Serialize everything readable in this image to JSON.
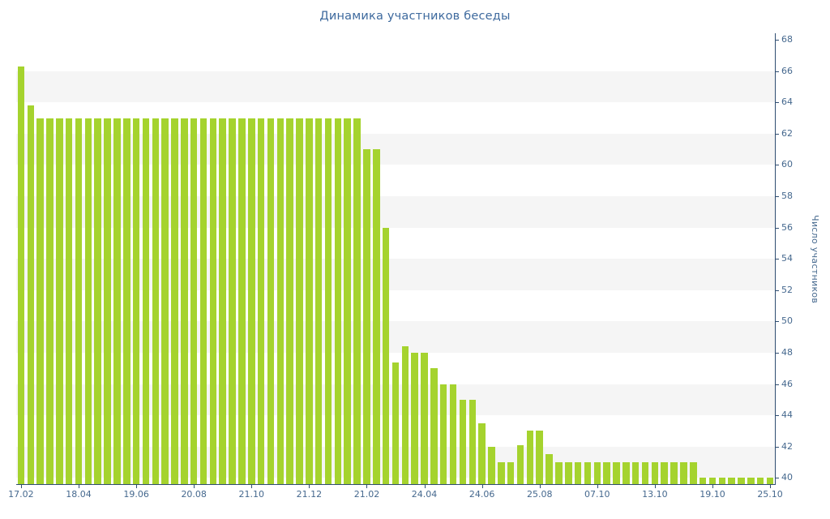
{
  "page": {
    "background": "#ffffff"
  },
  "chart_data": {
    "type": "bar",
    "title": "Динамика участников беседы",
    "xlabel": "",
    "ylabel": "Число участников",
    "ylim": [
      40,
      68
    ],
    "y_axis_side": "right",
    "grid": "striped-bands",
    "legend": "none",
    "y_ticks": [
      40,
      42,
      44,
      46,
      48,
      50,
      52,
      54,
      56,
      58,
      60,
      62,
      64,
      66,
      68
    ],
    "x_tick_labels": [
      "17.02",
      "18.04",
      "19.06",
      "20.08",
      "21.10",
      "21.12",
      "21.02",
      "24.04",
      "24.06",
      "25.08",
      "07.10",
      "13.10",
      "19.10",
      "25.10"
    ],
    "x_tick_every": 6,
    "values": [
      66.3,
      63.8,
      63,
      63,
      63,
      63,
      63,
      63,
      63,
      63,
      63,
      63,
      63,
      63,
      63,
      63,
      63,
      63,
      63,
      63,
      63,
      63,
      63,
      63,
      63,
      63,
      63,
      63,
      63,
      63,
      63,
      63,
      63,
      63,
      63,
      63,
      61,
      61,
      56,
      47.4,
      48.4,
      48,
      48,
      47,
      46,
      46,
      45,
      45,
      43.5,
      42,
      41,
      41,
      42.1,
      43,
      43,
      41.5,
      41,
      41,
      41,
      41,
      41,
      41,
      41,
      41,
      41,
      41,
      41,
      41,
      41,
      41,
      41,
      40,
      40,
      40,
      40,
      40,
      40,
      40,
      40
    ],
    "colors": {
      "bar": "#a5d32e",
      "stripe": "#f5f5f5",
      "labels": "#45688e",
      "title": "#3e6a9e",
      "axis": "#2f4d71"
    }
  }
}
